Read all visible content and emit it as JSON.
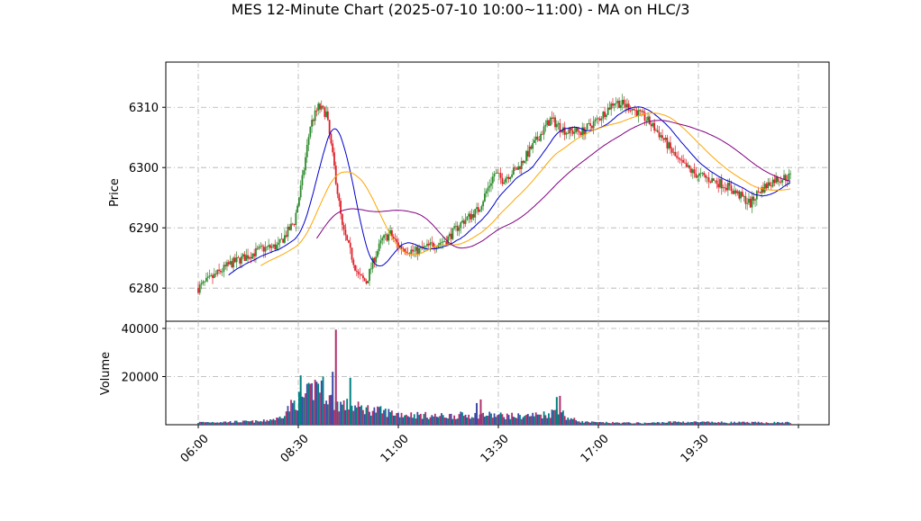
{
  "chart_data": {
    "type": "candlestick",
    "title": "MES 12-Minute Chart (2025-07-10 10:00~11:00) - MA on HLC/3",
    "price_panel": {
      "ylabel": "Price",
      "ylim": [
        6274.5,
        6317.5
      ],
      "yticks": [
        6280,
        6290,
        6300,
        6310
      ],
      "grid": true
    },
    "volume_panel": {
      "ylabel": "Volume",
      "ylim": [
        0,
        40000
      ],
      "yticks": [
        20000,
        40000
      ],
      "grid": true
    },
    "x_ticks": [
      {
        "label": "06:00",
        "bar": 0
      },
      {
        "label": "08:30",
        "bar": 12.5
      },
      {
        "label": "11:00",
        "bar": 25
      },
      {
        "label": "13:30",
        "bar": 37.5
      },
      {
        "label": "17:00",
        "bar": 50
      },
      {
        "label": "19:30",
        "bar": 62.5
      },
      {
        "label": "",
        "bar": 75
      }
    ],
    "bar_count": 75,
    "price_path": [
      [
        0,
        6280
      ],
      [
        4,
        6284
      ],
      [
        8,
        6286.5
      ],
      [
        10,
        6287
      ],
      [
        12,
        6291
      ],
      [
        13,
        6298
      ],
      [
        14,
        6307
      ],
      [
        15,
        6310
      ],
      [
        16,
        6309
      ],
      [
        17,
        6300
      ],
      [
        18,
        6290
      ],
      [
        19,
        6286
      ],
      [
        20,
        6282
      ],
      [
        21,
        6281
      ],
      [
        22,
        6285
      ],
      [
        23,
        6288
      ],
      [
        24,
        6289
      ],
      [
        25,
        6287
      ],
      [
        27,
        6286
      ],
      [
        29,
        6287
      ],
      [
        31,
        6288
      ],
      [
        33,
        6291
      ],
      [
        35,
        6293
      ],
      [
        37,
        6299
      ],
      [
        38,
        6298
      ],
      [
        40,
        6300
      ],
      [
        42,
        6304
      ],
      [
        44,
        6308
      ],
      [
        46,
        6306
      ],
      [
        48,
        6306
      ],
      [
        50,
        6308
      ],
      [
        52,
        6311
      ],
      [
        54,
        6310
      ],
      [
        56,
        6308
      ],
      [
        58,
        6305
      ],
      [
        60,
        6301
      ],
      [
        62,
        6299
      ],
      [
        64,
        6298
      ],
      [
        66,
        6297
      ],
      [
        68,
        6295
      ],
      [
        69,
        6294
      ],
      [
        70,
        6296
      ],
      [
        72,
        6298
      ],
      [
        74,
        6298.5
      ]
    ],
    "volume_profile": [
      [
        0,
        1000
      ],
      [
        8,
        1400
      ],
      [
        9,
        2200
      ],
      [
        10,
        2500
      ],
      [
        12,
        9000
      ],
      [
        14,
        13000
      ],
      [
        15,
        18000
      ],
      [
        16,
        13000
      ],
      [
        17,
        9000
      ],
      [
        20,
        7000
      ],
      [
        22,
        6000
      ],
      [
        25,
        4500
      ],
      [
        30,
        3500
      ],
      [
        35,
        4200
      ],
      [
        40,
        3500
      ],
      [
        44,
        4500
      ],
      [
        45,
        7000
      ],
      [
        46,
        3000
      ],
      [
        48,
        1200
      ],
      [
        50,
        900
      ],
      [
        56,
        700
      ],
      [
        60,
        1200
      ],
      [
        64,
        1000
      ],
      [
        70,
        900
      ],
      [
        74,
        900
      ]
    ],
    "volume_spikes": [
      {
        "bar": 12.8,
        "value": 20500
      },
      {
        "bar": 17.2,
        "value": 39500
      },
      {
        "bar": 16.8,
        "value": 22000
      },
      {
        "bar": 19.0,
        "value": 19500
      },
      {
        "bar": 35.3,
        "value": 10500
      },
      {
        "bar": 34.8,
        "value": 9000
      },
      {
        "bar": 44.8,
        "value": 11500
      },
      {
        "bar": 45.2,
        "value": 12000
      }
    ],
    "ma_series": [
      {
        "color": "#0000cc",
        "period": 4
      },
      {
        "color": "#ffa500",
        "period": 8
      },
      {
        "color": "#800080",
        "period": 15
      }
    ],
    "colors": {
      "up": "#2e8b2e",
      "down": "#e0202a",
      "volume": [
        "#008080",
        "#b0306a",
        "#3c4aa8"
      ],
      "grid": "#b0b0b0"
    }
  }
}
